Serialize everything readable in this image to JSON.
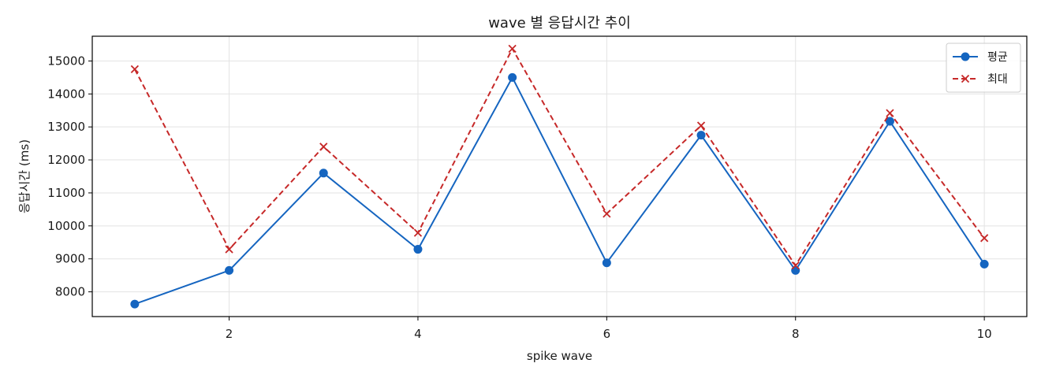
{
  "chart_data": {
    "type": "line",
    "title": "wave 별 응답시간 추이",
    "xlabel": "spike wave",
    "ylabel": "응답시간 (ms)",
    "x": [
      1,
      2,
      3,
      4,
      5,
      6,
      7,
      8,
      9,
      10
    ],
    "xlim": [
      0.55,
      10.45
    ],
    "ylim": [
      7250,
      15750
    ],
    "xticks": [
      2,
      4,
      6,
      8,
      10
    ],
    "yticks": [
      8000,
      9000,
      10000,
      11000,
      12000,
      13000,
      14000,
      15000
    ],
    "grid": true,
    "legend_position": "top-right",
    "series": [
      {
        "name": "평균",
        "color": "#1565c0",
        "line_style": "solid",
        "marker": "circle",
        "values": [
          7630,
          8650,
          11600,
          9290,
          14500,
          8880,
          12750,
          8650,
          13170,
          8840
        ]
      },
      {
        "name": "최대",
        "color": "#c62828",
        "line_style": "dashed",
        "marker": "x",
        "values": [
          14750,
          9290,
          12400,
          9790,
          15370,
          10370,
          13040,
          8800,
          13420,
          9630
        ]
      }
    ]
  }
}
